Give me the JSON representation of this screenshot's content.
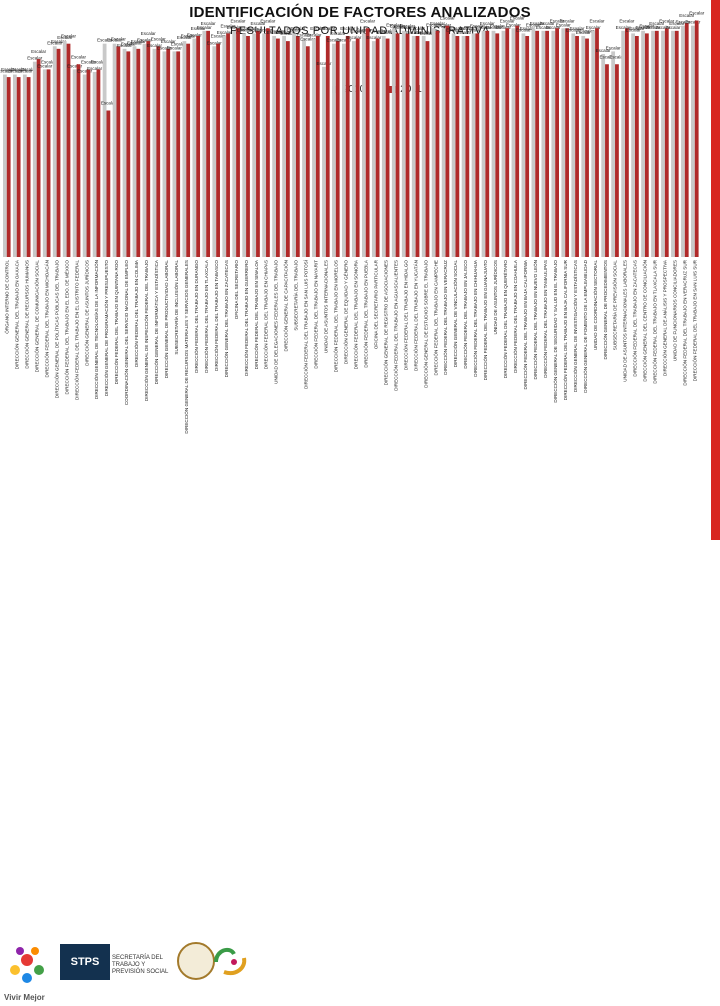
{
  "title": "IDENTIFICACIÓN DE FACTORES ANALIZADOS",
  "subtitle": "RESULTADOS POR UNIDAD ADMINISTRATIVA",
  "chart_data": {
    "type": "bar",
    "series": [
      {
        "name": "2010",
        "color": "#c9c9c9",
        "values": [
          71,
          71,
          71,
          76,
          73,
          82,
          84,
          73,
          71,
          72,
          83,
          83,
          81,
          82,
          83,
          81,
          80,
          80,
          84,
          85,
          88,
          82,
          86,
          88,
          87,
          87,
          87,
          86,
          86,
          87,
          85,
          85,
          74,
          83,
          83,
          84,
          87,
          84,
          86,
          89,
          88,
          86,
          86,
          89,
          89,
          87,
          86,
          87,
          88,
          88,
          88,
          89,
          87,
          89,
          88,
          88,
          89,
          87,
          86,
          88,
          79,
          80,
          88,
          87,
          88,
          88,
          88,
          88,
          90,
          90
        ]
      },
      {
        "name": "2011",
        "color": "#b02a2a",
        "values": [
          70,
          70,
          70,
          77,
          73,
          81,
          83,
          75,
          73,
          73,
          57,
          82,
          80,
          81,
          84,
          82,
          81,
          80,
          83,
          86,
          88,
          83,
          87,
          89,
          86,
          88,
          89,
          85,
          84,
          86,
          82,
          86,
          86,
          84,
          86,
          85,
          89,
          85,
          85,
          87,
          87,
          86,
          84,
          88,
          90,
          86,
          86,
          87,
          88,
          87,
          89,
          90,
          86,
          88,
          88,
          89,
          89,
          86,
          85,
          89,
          75,
          75,
          89,
          86,
          87,
          88,
          89,
          88,
          91,
          92
        ]
      }
    ],
    "categories": [
      "ÓRGANO INTERNO DE CONTROL",
      "DIRECCIÓN GENERAL DEL TRABAJO EN OAXACA",
      "DIRECCIÓN GENERAL DE RECURSOS HUMANOS",
      "DIRECCIÓN GENERAL DE COMUNICACIÓN SOCIAL",
      "DIRECCIÓN FEDERAL DEL TRABAJO EN MICHOACÁN",
      "DIRECCIÓN GENERAL DE POLÍTICAS PÚBLICAS DEL TRABAJO",
      "DIRECCIÓN FEDERAL DEL TRABAJO EN EL EDO. DE MÉXICO",
      "DIRECCIÓN FEDERAL DEL TRABAJO EN EL DISTRITO FEDERAL",
      "DIRECCIÓN GENERAL DE ASUNTOS JURÍDICOS",
      "DIRECCIÓN GENERAL DE TECNOLOGÍAS DE LA INFORMACIÓN",
      "DIRECCIÓN GENERAL DE PROGRAMACIÓN Y PRESUPUESTO",
      "DIRECCIÓN FEDERAL DEL TRABAJO EN QUINTANA ROO",
      "COORDINACIÓN GENERAL DEL SERVICIO NACIONAL DE EMPLEO",
      "DIRECCIÓN FEDERAL DEL TRABAJO EN COLIMA",
      "DIRECCIÓN GENERAL DE INSPECCIÓN FEDERAL DEL TRABAJO",
      "DIRECCIÓN GENERAL DE INFORMÁTICA Y ESTADÍSTICA",
      "DIRECCIÓN GENERAL DE PRODUCTIVIDAD LABORAL",
      "SUBSECRETARÍA DE INCLUSIÓN LABORAL",
      "DIRECCIÓN GENERAL DE RECURSOS MATERIALES Y SERVICIOS GENERALES",
      "DIRECCIÓN FEDERAL DEL TRABAJO EN DURANGO",
      "DIRECCIÓN FEDERAL DEL TRABAJO EN TLAXCALA",
      "DIRECCIÓN FEDERAL DEL TRABAJO EN TABASCO",
      "DIRECCIÓN GENERAL DEL TRABAJO EN ZACATECAS",
      "OFICINA DEL SECRETARIO",
      "DIRECCIÓN FEDERAL DEL TRABAJO EN GUERRERO",
      "DIRECCIÓN FEDERAL DEL TRABAJO EN SINALOA",
      "DIRECCIÓN FEDERAL DEL TRABAJO EN CHIAPAS",
      "UNIDAD DE DELEGACIONES FEDERALES DEL TRABAJO",
      "DIRECCIÓN GENERAL DE CAPACITACIÓN",
      "SUBSECRETARÍA DEL TRABAJO",
      "DIRECCIÓN FEDERAL DEL TRABAJO EN SAN LUIS POTOSÍ",
      "DIRECCIÓN FEDERAL DEL TRABAJO EN NAYARIT",
      "UNIDAD DE ASUNTOS INTERNACIONALES",
      "DIRECCIÓN FEDERAL DEL TRABAJO EN MORELOS",
      "DIRECCIÓN GENERAL DE EQUIDAD Y GÉNERO",
      "DIRECCIÓN FEDERAL DEL TRABAJO EN SONORA",
      "DIRECCIÓN FEDERAL DEL TRABAJO EN PUEBLA",
      "OFICINA DEL SECRETARIO PARTICULAR",
      "DIRECCIÓN GENERAL DE REGISTRO DE ASOCIACIONES",
      "DIRECCIÓN FEDERAL DEL TRABAJO EN AGUASCALIENTES",
      "DIRECCIÓN FEDERAL DEL TRABAJO EN HIDALGO",
      "DIRECCIÓN FEDERAL DEL TRABAJO EN YUCATÁN",
      "DIRECCIÓN GENERAL DE ESTUDIOS SOBRE EL TRABAJO",
      "DIRECCIÓN FEDERAL DEL TRABAJO EN CAMPECHE",
      "DIRECCIÓN FEDERAL DEL TRABAJO EN VERACRUZ",
      "DIRECCIÓN GENERAL DE VINCULACIÓN SOCIAL",
      "DIRECCIÓN FEDERAL DEL TRABAJO EN JALISCO",
      "DIRECCIÓN FEDERAL DEL TRABAJO EN CHIHUAHUA",
      "DIRECCIÓN FEDERAL DEL TRABAJO EN GUANAJUATO",
      "UNIDAD DE ASUNTOS JURÍDICOS",
      "DIRECCIÓN FEDERAL DEL TRABAJO EN QUERÉTARO",
      "DIRECCIÓN FEDERAL DEL TRABAJO EN COAHUILA",
      "DIRECCIÓN FEDERAL DEL TRABAJO EN BAJA CALIFORNIA",
      "DIRECCIÓN FEDERAL DEL TRABAJO EN NUEVO LEÓN",
      "DIRECCIÓN FEDERAL DEL TRABAJO EN TAMAULIPAS",
      "DIRECCIÓN GENERAL DE SEGURIDAD Y SALUD EN EL TRABAJO",
      "DIRECCIÓN FEDERAL DEL TRABAJO EN BAJA CALIFORNIA SUR",
      "DIRECCIÓN GENERAL DE INVESTIGACIÓN Y ESTADÍSTICAS",
      "DIRECCIÓN GENERAL DE FOMENTO DE LA EMPLEABILIDAD",
      "UNIDAD DE COORDINACIÓN SECTORIAL",
      "DIRECCIÓN GENERAL DE PROCEDIMIENTOS",
      "SUBSECRETARÍA DE PREVISIÓN SOCIAL",
      "UNIDAD DE ASUNTOS INTERNACIONALES LABORALES",
      "DIRECCIÓN FEDERAL DEL TRABAJO EN ZACATECAS",
      "DIRECCIÓN GENERAL DEL CENTRO DE CONCILIACIÓN",
      "DIRECCIÓN FEDERAL DEL TRABAJO EN TLAXCALA SUR",
      "DIRECCIÓN GENERAL DE ANÁLISIS Y PROSPECTIVA",
      "UNIDAD DE FUNCIONARIOS CONCILIADORES",
      "DIRECCIÓN FEDERAL DEL TRABAJO EN VERACRUZ SUR",
      "DIRECCIÓN FEDERAL DEL TRABAJO EN SAN LUIS SUR"
    ],
    "ylim": [
      0,
      100
    ],
    "grid": false,
    "legend_position": "top-center",
    "point_label": "Escalar"
  },
  "footer": {
    "vivir_mejor": "Vivir Mejor",
    "stps": "STPS",
    "stps_subtitle": "SECRETARÍA DEL TRABAJO Y PREVISIÓN SOCIAL"
  }
}
